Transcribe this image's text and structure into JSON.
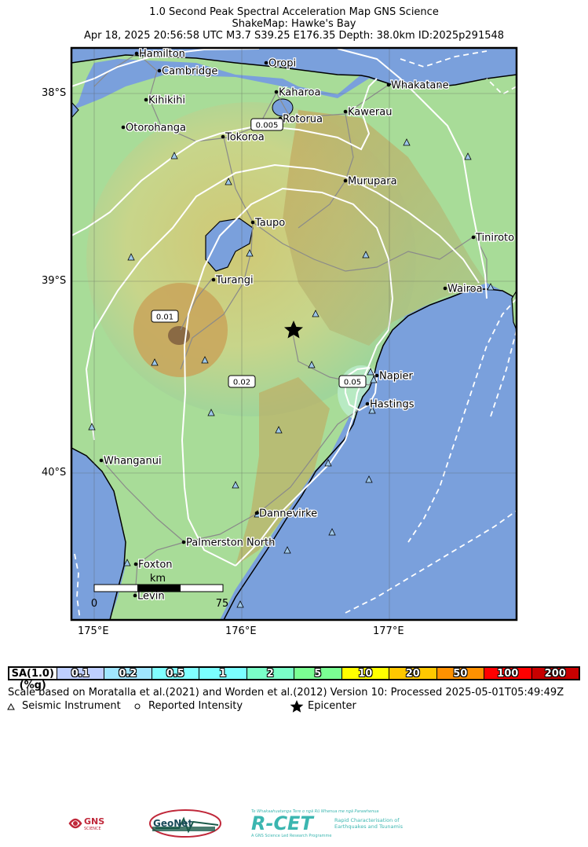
{
  "title": {
    "line1": "1.0 Second Peak Spectral Acceleration Map GNS Science",
    "line2": "ShakeMap: Hawke's Bay",
    "line3": "Apr 18, 2025 20:56:58 UTC M3.7 S39.25 E176.35 Depth: 38.0km ID:2025p291548"
  },
  "axes": {
    "lat_labels": [
      "38°S",
      "39°S",
      "40°S"
    ],
    "lon_labels": [
      "175°E",
      "176°E",
      "177°E"
    ]
  },
  "places": [
    {
      "name": "Hamilton"
    },
    {
      "name": "Cambridge"
    },
    {
      "name": "Oropi"
    },
    {
      "name": "Kihikihi"
    },
    {
      "name": "Kaharoa"
    },
    {
      "name": "Whakatane"
    },
    {
      "name": "Kawerau"
    },
    {
      "name": "Rotorua"
    },
    {
      "name": "Otorohanga"
    },
    {
      "name": "Tokoroa"
    },
    {
      "name": "Murupara"
    },
    {
      "name": "Taupo"
    },
    {
      "name": "Tiniroto"
    },
    {
      "name": "Turangi"
    },
    {
      "name": "Wairoa"
    },
    {
      "name": "Napier"
    },
    {
      "name": "Hastings"
    },
    {
      "name": "Whanganui"
    },
    {
      "name": "Dannevirke"
    },
    {
      "name": "Palmerston North"
    },
    {
      "name": "Foxton"
    },
    {
      "name": "Levin"
    }
  ],
  "contours": {
    "labels": [
      "0.005",
      "0.01",
      "0.02",
      "0.05"
    ]
  },
  "scale_bar": {
    "unit": "km",
    "start": "0",
    "end": "75"
  },
  "legend": {
    "header": "SA(1.0) (%g)",
    "bins": [
      {
        "label": "0.1",
        "color": "#bfcfff"
      },
      {
        "label": "0.2",
        "color": "#a0e6ff"
      },
      {
        "label": "0.5",
        "color": "#80ffff"
      },
      {
        "label": "1",
        "color": "#7affff"
      },
      {
        "label": "2",
        "color": "#7affc8"
      },
      {
        "label": "5",
        "color": "#7aff93"
      },
      {
        "label": "10",
        "color": "#ffff00"
      },
      {
        "label": "20",
        "color": "#ffc800"
      },
      {
        "label": "50",
        "color": "#ff9100"
      },
      {
        "label": "100",
        "color": "#ff0000"
      },
      {
        "label": "200",
        "color": "#c80000"
      }
    ]
  },
  "notes": {
    "scale_line": "Scale based on Moratalla et al.(2021) and Worden et al.(2012) Version 10: Processed 2025-05-01T05:49:49Z",
    "instrument": "Seismic Instrument",
    "intensity": "Reported Intensity",
    "epicenter": "Epicenter"
  },
  "logos": {
    "gns": "GNS",
    "gns_sub": "SCIENCE",
    "geonet": "GeoNet",
    "rcet": "R-CET",
    "rcet_tagline_top": "Te Whakaahuatanga Tere o ngā Rū Whenua me ngā Parawhenua",
    "rcet_tagline_1": "Rapid Characterisation of",
    "rcet_tagline_2": "Earthquakes and Tsunamis",
    "rcet_tagline_bottom": "A GNS Science Led Research Programme"
  },
  "colors": {
    "water": "#7aa0dc",
    "contour": "#ffffff",
    "roads": "#8a8a8a",
    "land_low": "#a8e2a0",
    "land_mid": "#d8c878",
    "land_high": "#c09a50"
  }
}
